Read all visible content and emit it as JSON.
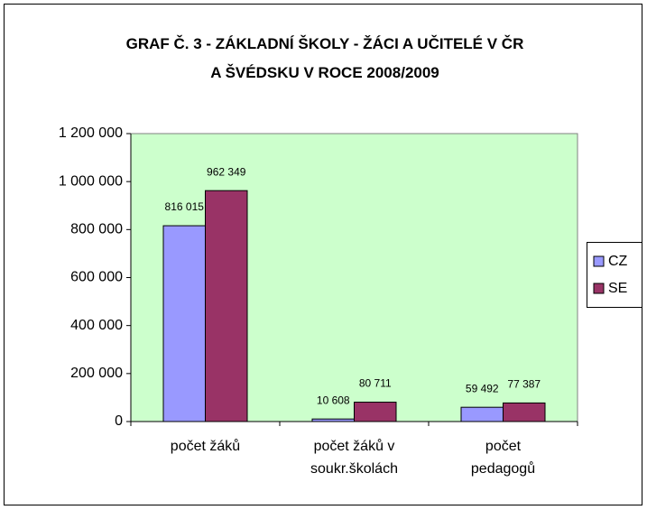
{
  "chart_data": {
    "type": "bar",
    "title": "GRAF Č. 3 - ZÁKLADNÍ ŠKOLY - ŽÁCI A UČITELÉ V ČR\nA ŠVÉDSKU V ROCE 2008/2009",
    "categories": [
      "počet žáků",
      "počet žáků v\nsoukr.školách",
      "počet\npedagogů"
    ],
    "series": [
      {
        "name": "CZ",
        "color": "#9999ff",
        "values": [
          816015,
          10608,
          59492
        ],
        "value_labels": [
          "816 015",
          "10 608",
          "59 492"
        ]
      },
      {
        "name": "SE",
        "color": "#993366",
        "values": [
          962349,
          80711,
          77387
        ],
        "value_labels": [
          "962 349",
          "80 711",
          "77 387"
        ]
      }
    ],
    "ylim": [
      0,
      1200000
    ],
    "yticks": [
      {
        "value": 0,
        "label": "0"
      },
      {
        "value": 200000,
        "label": "200 000"
      },
      {
        "value": 400000,
        "label": "400 000"
      },
      {
        "value": 600000,
        "label": "600 000"
      },
      {
        "value": 800000,
        "label": "800 000"
      },
      {
        "value": 1000000,
        "label": "1 000 000"
      },
      {
        "value": 1200000,
        "label": "1 200 000"
      }
    ],
    "plot_background": "#ccffcc",
    "legend": "right"
  }
}
